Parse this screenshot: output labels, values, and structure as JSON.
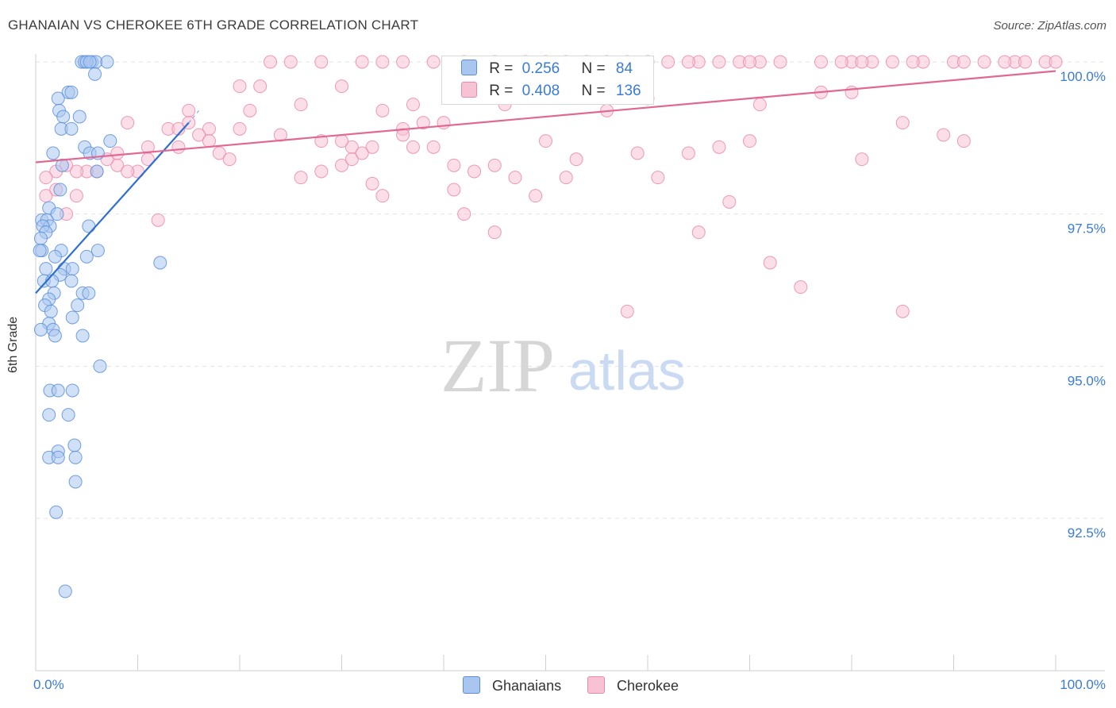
{
  "header": {
    "title": "GHANAIAN VS CHEROKEE 6TH GRADE CORRELATION CHART",
    "source": "Source: ZipAtlas.com"
  },
  "watermark": {
    "zip": "ZIP",
    "atlas": "atlas"
  },
  "legend": {
    "rows": [
      {
        "r_label": "R =",
        "r_value": "0.256",
        "n_label": "N =",
        "n_value": "84"
      },
      {
        "r_label": "R =",
        "r_value": "0.408",
        "n_label": "N =",
        "n_value": "136"
      }
    ]
  },
  "chart_data": {
    "type": "scatter",
    "title": "GHANAIAN VS CHEROKEE 6TH GRADE CORRELATION CHART",
    "xlabel": "",
    "ylabel": "6th Grade",
    "xlim": [
      0,
      100
    ],
    "ylim": [
      90.8,
      100.35
    ],
    "x_tick_labels": [
      "0.0%",
      "100.0%"
    ],
    "y_ticks": [
      {
        "value": 100.0,
        "label": "100.0%"
      },
      {
        "value": 97.5,
        "label": "97.5%"
      },
      {
        "value": 95.0,
        "label": "95.0%"
      },
      {
        "value": 92.5,
        "label": "92.5%"
      }
    ],
    "grid": "horizontal-dashed",
    "legend_position": "top-center",
    "colors": {
      "ghanaians_fill": "#a9c6f0",
      "ghanaians_stroke": "#5b8fd9",
      "ghanaians_line": "#2f6fd0",
      "cherokee_fill": "#f7c3d4",
      "cherokee_stroke": "#e98aab",
      "cherokee_line": "#e06892",
      "tick_label": "#3a7bd5"
    },
    "series": [
      {
        "name": "Ghanaians",
        "r": 0.256,
        "n": 84,
        "trend": {
          "x0": 0.0,
          "y0": 96.2,
          "x1": 15.0,
          "y1": 99.0
        },
        "points": [
          [
            4.5,
            100
          ],
          [
            4.8,
            100
          ],
          [
            5.5,
            100
          ],
          [
            5.9,
            100
          ],
          [
            7.0,
            100
          ],
          [
            5.0,
            100
          ],
          [
            5.3,
            100
          ],
          [
            5.8,
            99.8
          ],
          [
            3.2,
            99.5
          ],
          [
            3.5,
            99.5
          ],
          [
            2.2,
            99.4
          ],
          [
            2.3,
            99.2
          ],
          [
            2.7,
            99.1
          ],
          [
            4.3,
            99.1
          ],
          [
            2.5,
            98.9
          ],
          [
            3.5,
            98.9
          ],
          [
            1.7,
            98.5
          ],
          [
            4.8,
            98.6
          ],
          [
            5.3,
            98.5
          ],
          [
            6.1,
            98.5
          ],
          [
            7.3,
            98.7
          ],
          [
            2.6,
            98.3
          ],
          [
            6.0,
            98.2
          ],
          [
            2.4,
            97.9
          ],
          [
            1.3,
            97.6
          ],
          [
            2.1,
            97.5
          ],
          [
            0.6,
            97.4
          ],
          [
            1.1,
            97.4
          ],
          [
            1.4,
            97.3
          ],
          [
            0.7,
            97.3
          ],
          [
            1.0,
            97.2
          ],
          [
            0.5,
            97.1
          ],
          [
            5.2,
            97.3
          ],
          [
            0.6,
            96.9
          ],
          [
            0.4,
            96.9
          ],
          [
            2.5,
            96.9
          ],
          [
            6.1,
            96.9
          ],
          [
            1.9,
            96.8
          ],
          [
            5.0,
            96.8
          ],
          [
            12.2,
            96.7
          ],
          [
            2.8,
            96.6
          ],
          [
            3.6,
            96.6
          ],
          [
            1.0,
            96.6
          ],
          [
            0.8,
            96.4
          ],
          [
            2.4,
            96.5
          ],
          [
            1.6,
            96.4
          ],
          [
            3.5,
            96.4
          ],
          [
            1.8,
            96.2
          ],
          [
            4.6,
            96.2
          ],
          [
            5.2,
            96.2
          ],
          [
            1.3,
            96.1
          ],
          [
            0.9,
            96.0
          ],
          [
            4.1,
            96.0
          ],
          [
            1.5,
            95.9
          ],
          [
            3.6,
            95.8
          ],
          [
            1.3,
            95.7
          ],
          [
            0.5,
            95.6
          ],
          [
            1.7,
            95.6
          ],
          [
            1.9,
            95.5
          ],
          [
            4.6,
            95.5
          ],
          [
            6.3,
            95.0
          ],
          [
            1.4,
            94.6
          ],
          [
            2.2,
            94.6
          ],
          [
            3.6,
            94.6
          ],
          [
            3.2,
            94.2
          ],
          [
            1.3,
            94.2
          ],
          [
            3.8,
            93.7
          ],
          [
            2.2,
            93.6
          ],
          [
            1.3,
            93.5
          ],
          [
            2.2,
            93.5
          ],
          [
            3.9,
            93.5
          ],
          [
            3.9,
            93.1
          ],
          [
            2.0,
            92.6
          ],
          [
            2.9,
            91.3
          ]
        ]
      },
      {
        "name": "Cherokee",
        "r": 0.408,
        "n": 136,
        "trend": {
          "x0": 0.0,
          "y0": 98.35,
          "x1": 100.0,
          "y1": 99.85
        },
        "points": [
          [
            23,
            100
          ],
          [
            25,
            100
          ],
          [
            28,
            100
          ],
          [
            32,
            100
          ],
          [
            34,
            100
          ],
          [
            36,
            100
          ],
          [
            39,
            100
          ],
          [
            42,
            100
          ],
          [
            45,
            100
          ],
          [
            48,
            100
          ],
          [
            50,
            100
          ],
          [
            52,
            100
          ],
          [
            54,
            100
          ],
          [
            56,
            100
          ],
          [
            58,
            100
          ],
          [
            60,
            100
          ],
          [
            62,
            100
          ],
          [
            65,
            100
          ],
          [
            67,
            100
          ],
          [
            69,
            100
          ],
          [
            71,
            100
          ],
          [
            73,
            100
          ],
          [
            77,
            100
          ],
          [
            80,
            100
          ],
          [
            82,
            100
          ],
          [
            84,
            100
          ],
          [
            87,
            100
          ],
          [
            90,
            100
          ],
          [
            93,
            100
          ],
          [
            96,
            100
          ],
          [
            99,
            100
          ],
          [
            100,
            100
          ],
          [
            64,
            100
          ],
          [
            70,
            100
          ],
          [
            79,
            100
          ],
          [
            81,
            100
          ],
          [
            86,
            100
          ],
          [
            91,
            100
          ],
          [
            95,
            100
          ],
          [
            97,
            100
          ],
          [
            20,
            99.6
          ],
          [
            22,
            99.6
          ],
          [
            30,
            99.6
          ],
          [
            15,
            99.2
          ],
          [
            17,
            98.9
          ],
          [
            20,
            98.9
          ],
          [
            21,
            99.2
          ],
          [
            24,
            98.8
          ],
          [
            26,
            99.3
          ],
          [
            31,
            98.6
          ],
          [
            33,
            98.6
          ],
          [
            34,
            99.2
          ],
          [
            36,
            98.9
          ],
          [
            37,
            99.3
          ],
          [
            38,
            99.0
          ],
          [
            40,
            99.0
          ],
          [
            28,
            98.7
          ],
          [
            30,
            98.7
          ],
          [
            9,
            99.0
          ],
          [
            11,
            98.6
          ],
          [
            13,
            98.9
          ],
          [
            14,
            98.9
          ],
          [
            15,
            99.0
          ],
          [
            16,
            98.8
          ],
          [
            17,
            98.7
          ],
          [
            18,
            98.5
          ],
          [
            19,
            98.4
          ],
          [
            8,
            98.3
          ],
          [
            7,
            98.4
          ],
          [
            6,
            98.2
          ],
          [
            5,
            98.2
          ],
          [
            4,
            98.2
          ],
          [
            3,
            98.3
          ],
          [
            2,
            98.2
          ],
          [
            1,
            98.1
          ],
          [
            1,
            97.8
          ],
          [
            2,
            97.9
          ],
          [
            3,
            97.5
          ],
          [
            4,
            97.8
          ],
          [
            12,
            97.4
          ],
          [
            26,
            98.1
          ],
          [
            28,
            98.2
          ],
          [
            30,
            98.3
          ],
          [
            31,
            98.4
          ],
          [
            32,
            98.5
          ],
          [
            33,
            98.0
          ],
          [
            34,
            97.8
          ],
          [
            36,
            98.8
          ],
          [
            37,
            98.6
          ],
          [
            39,
            98.6
          ],
          [
            41,
            98.3
          ],
          [
            41,
            97.9
          ],
          [
            42,
            97.5
          ],
          [
            43,
            98.2
          ],
          [
            45,
            98.3
          ],
          [
            45,
            97.2
          ],
          [
            47,
            98.1
          ],
          [
            49,
            97.8
          ],
          [
            50,
            98.7
          ],
          [
            52,
            98.1
          ],
          [
            53,
            98.4
          ],
          [
            56,
            99.2
          ],
          [
            59,
            98.5
          ],
          [
            61,
            98.1
          ],
          [
            64,
            98.5
          ],
          [
            67,
            98.6
          ],
          [
            68,
            97.7
          ],
          [
            70,
            98.7
          ],
          [
            71,
            99.3
          ],
          [
            72,
            96.7
          ],
          [
            75,
            96.3
          ],
          [
            77,
            99.5
          ],
          [
            80,
            99.5
          ],
          [
            81,
            98.4
          ],
          [
            85,
            99.0
          ],
          [
            89,
            98.8
          ],
          [
            91,
            98.7
          ],
          [
            46,
            99.3
          ],
          [
            60,
            99.4
          ],
          [
            65,
            97.2
          ],
          [
            58,
            95.9
          ],
          [
            85,
            95.9
          ],
          [
            11,
            98.4
          ],
          [
            10,
            98.2
          ],
          [
            9,
            98.2
          ],
          [
            8,
            98.5
          ],
          [
            14,
            98.6
          ]
        ]
      }
    ]
  },
  "bottom_legend": {
    "items": [
      "Ghanaians",
      "Cherokee"
    ]
  }
}
